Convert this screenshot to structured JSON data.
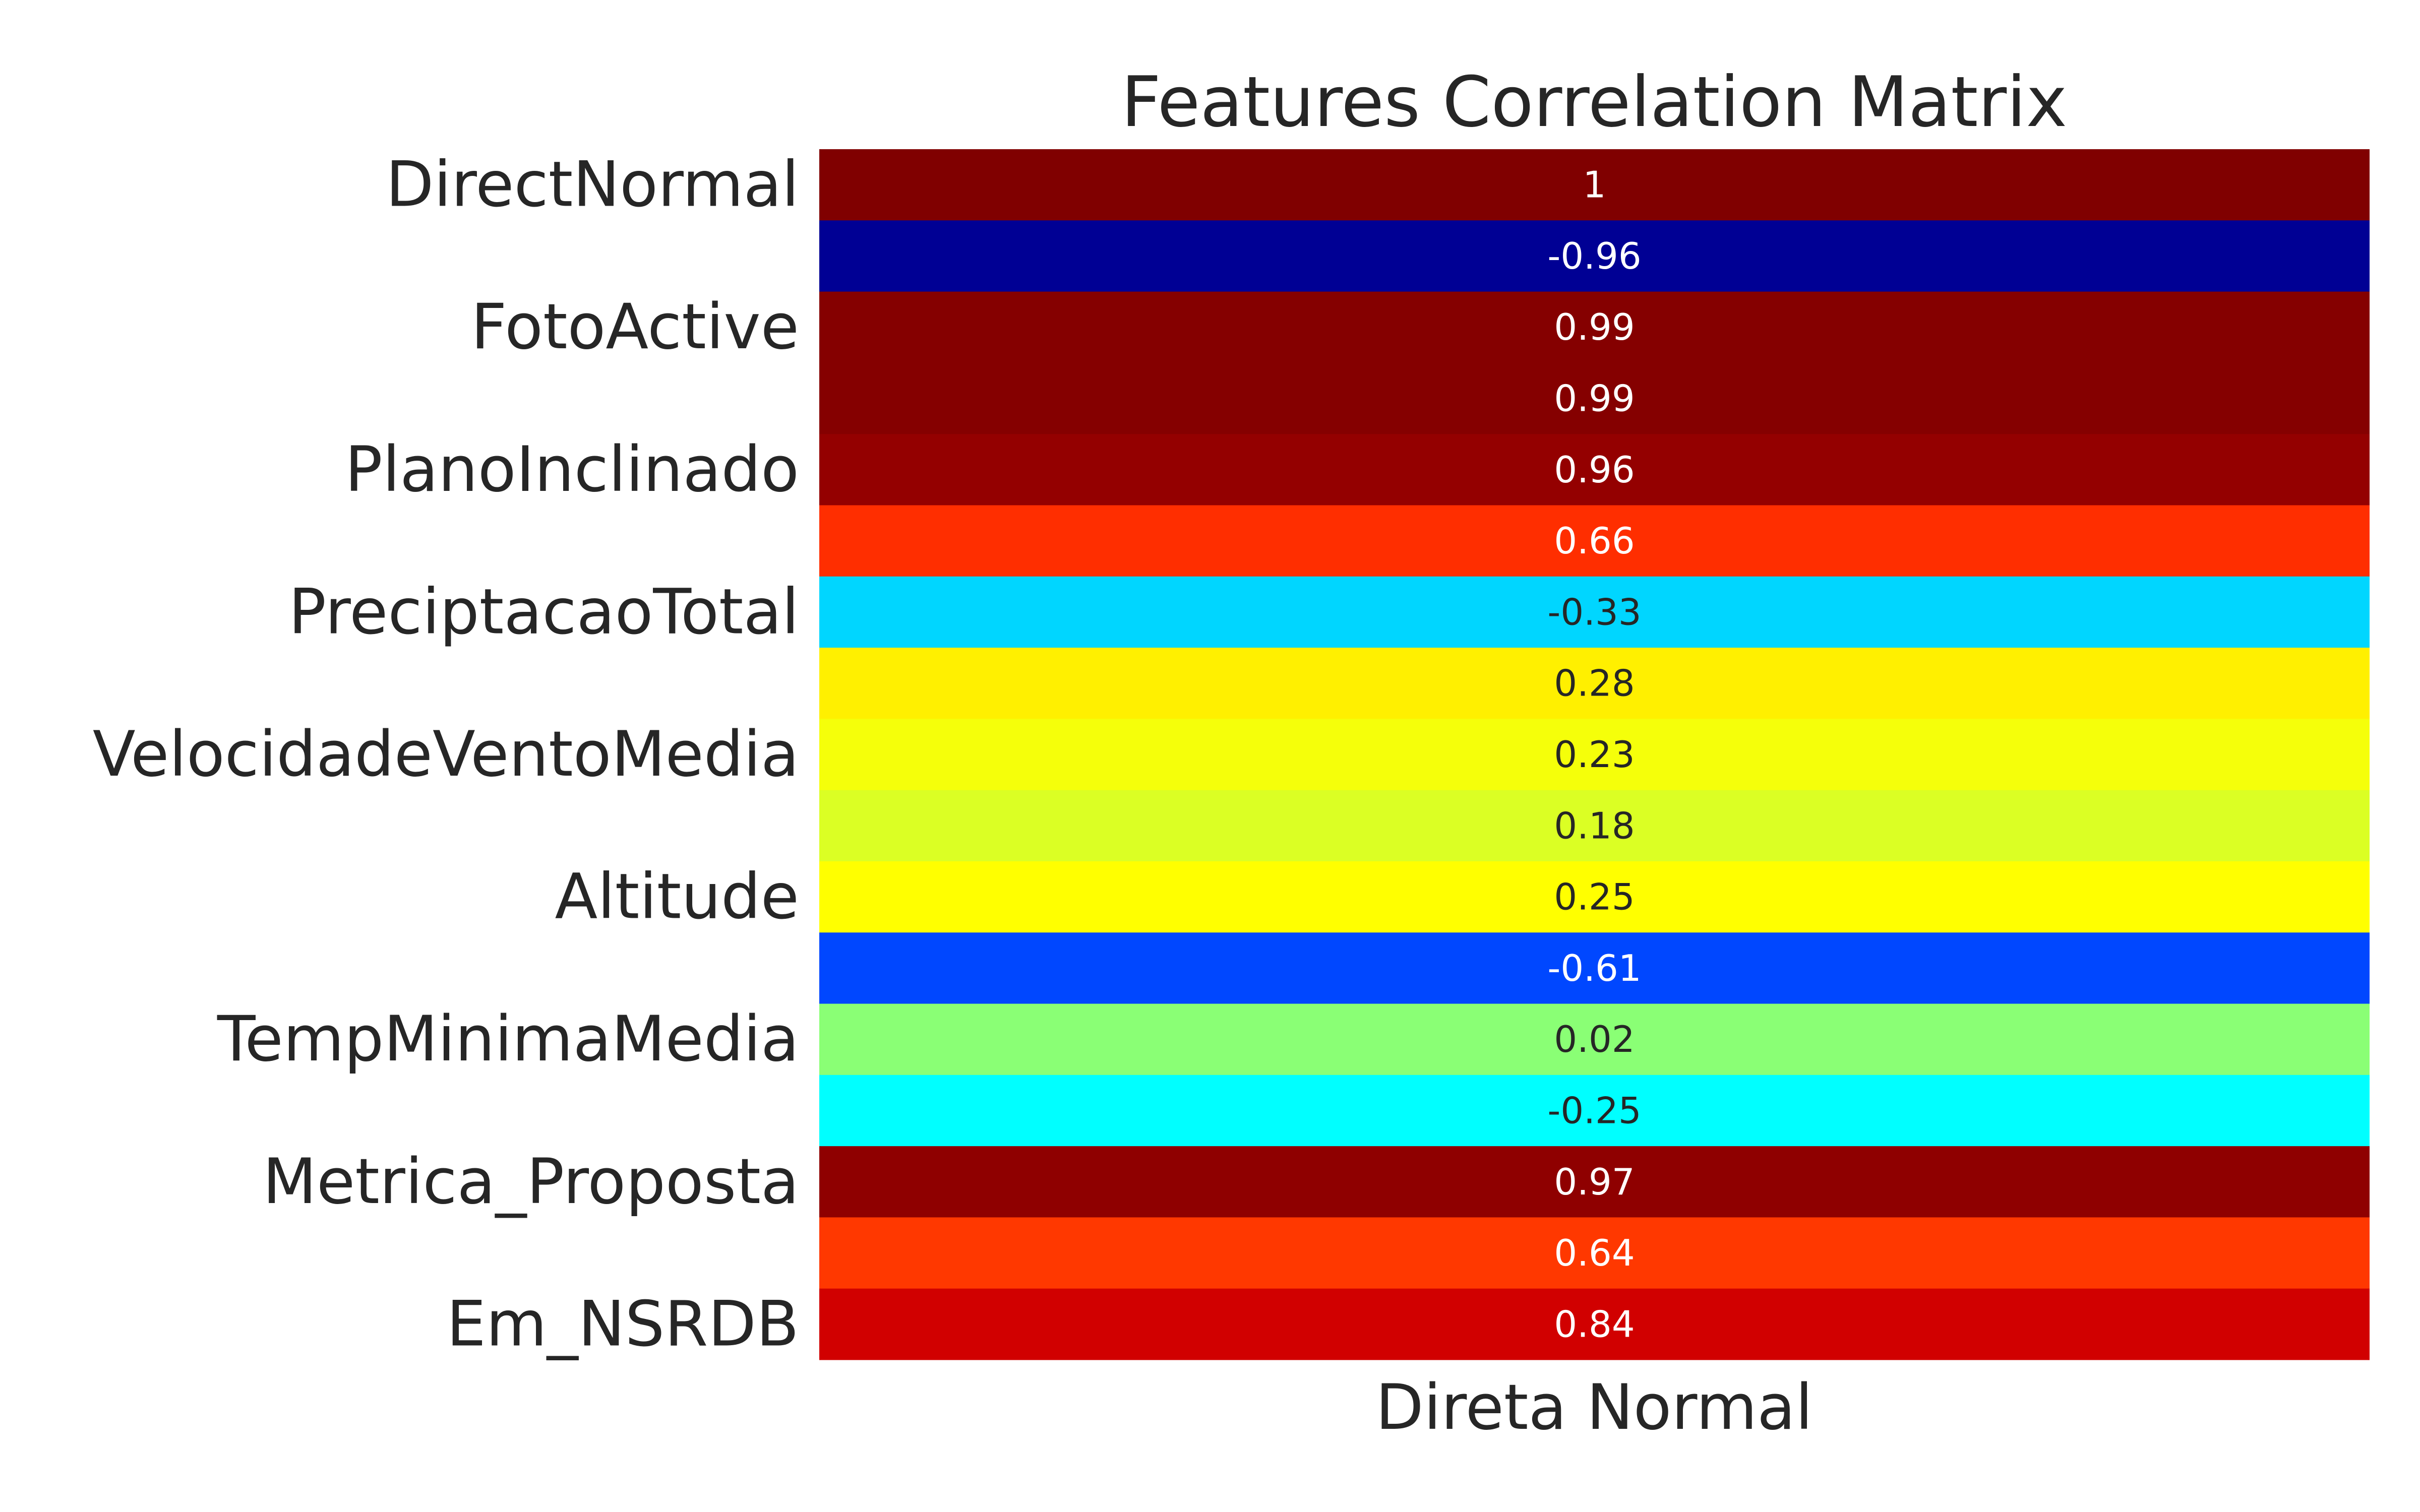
{
  "chart_data": {
    "type": "heatmap",
    "title": "Features Correlation Matrix",
    "xlabel": "",
    "ylabel": "",
    "columns": [
      "Direta Normal"
    ],
    "rows": [
      "DirectNormal",
      "",
      "FotoActive",
      "",
      "PlanoInclinado",
      "",
      "PreciptacaoTotal",
      "",
      "VelocidadeVentoMedia",
      "",
      "Altitude",
      "",
      "TempMinimaMedia",
      "",
      "Metrica_Proposta",
      "",
      "Em_NSRDB"
    ],
    "values": [
      1,
      -0.96,
      0.99,
      0.99,
      0.96,
      0.66,
      -0.33,
      0.28,
      0.23,
      0.18,
      0.25,
      -0.61,
      0.02,
      -0.25,
      0.97,
      0.64,
      0.84
    ],
    "value_labels": [
      "1",
      "-0.96",
      "0.99",
      "0.99",
      "0.96",
      "0.66",
      "-0.33",
      "0.28",
      "0.23",
      "0.18",
      "0.25",
      "-0.61",
      "0.02",
      "-0.25",
      "0.97",
      "0.64",
      "0.84"
    ],
    "colormap": "jet",
    "vlim": [
      -1,
      1
    ],
    "grid": false,
    "colorbar": false
  }
}
